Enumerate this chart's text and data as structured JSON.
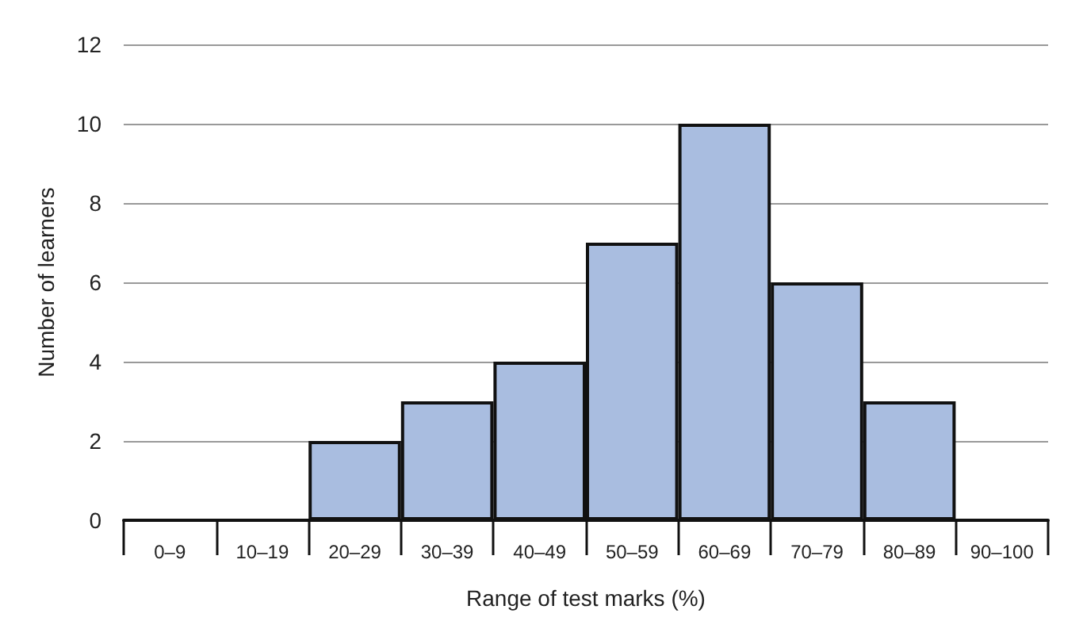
{
  "chart_data": {
    "type": "bar",
    "xlabel": "Range of test marks (%)",
    "ylabel": "Number of learners",
    "categories": [
      "0–9",
      "10–19",
      "20–29",
      "30–39",
      "40–49",
      "50–59",
      "60–69",
      "70–79",
      "80–89",
      "90–100"
    ],
    "values": [
      0,
      0,
      2,
      3,
      4,
      7,
      10,
      6,
      3,
      0
    ],
    "color": "#a9bde0",
    "ylim": [
      0,
      12
    ],
    "yticks": [
      0,
      2,
      4,
      6,
      8,
      10,
      12
    ],
    "grid": "y"
  }
}
